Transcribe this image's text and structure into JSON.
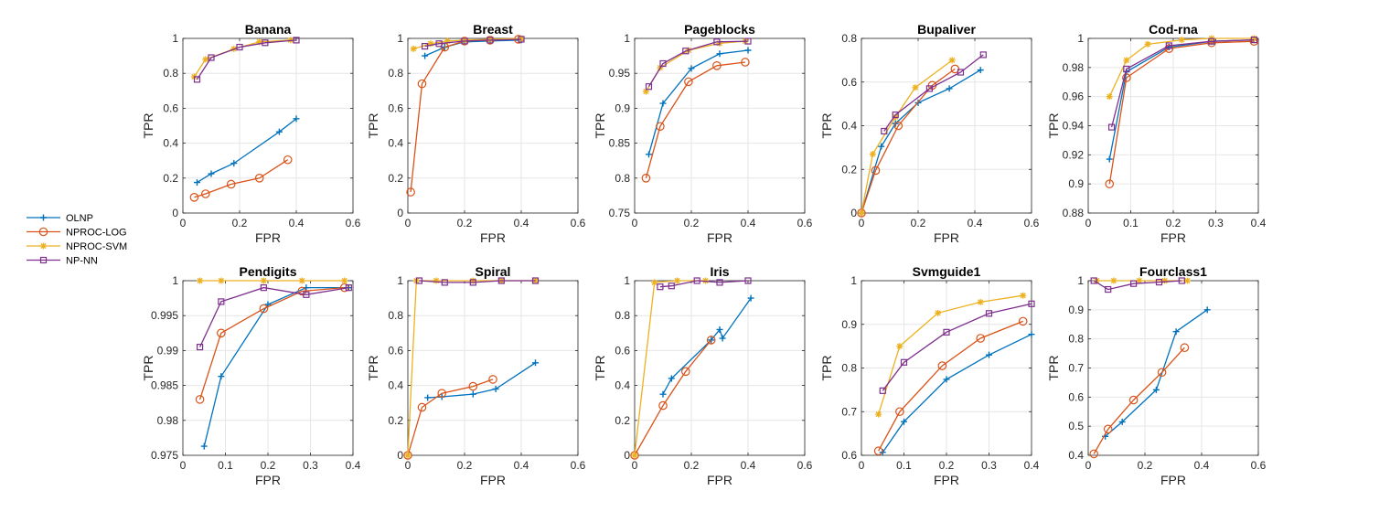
{
  "legend": [
    {
      "name": "OLNP",
      "color": "#0072BD",
      "marker": "plus"
    },
    {
      "name": "NPROC-LOG",
      "color": "#D95319",
      "marker": "circle"
    },
    {
      "name": "NPROC-SVM",
      "color": "#EDB120",
      "marker": "star"
    },
    {
      "name": "NP-NN",
      "color": "#7E2F8E",
      "marker": "square"
    }
  ],
  "chart_data": [
    {
      "type": "line",
      "title": "Banana",
      "xlabel": "FPR",
      "ylabel": "TPR",
      "xlim": [
        0,
        0.6
      ],
      "ylim": [
        0,
        1
      ],
      "xticks": [
        "0",
        "0.2",
        "0.4",
        "0.6"
      ],
      "xtick_values": [
        0,
        0.2,
        0.4,
        0.6
      ],
      "yticks": [
        "0",
        "0.2",
        "0.4",
        "0.6",
        "0.8",
        "1"
      ],
      "ytick_values": [
        0,
        0.2,
        0.4,
        0.6,
        0.8,
        1
      ],
      "grid": true,
      "series": [
        {
          "name": "OLNP",
          "x": [
            0.05,
            0.1,
            0.18,
            0.34,
            0.4
          ],
          "y": [
            0.175,
            0.225,
            0.285,
            0.465,
            0.54
          ]
        },
        {
          "name": "NPROC-LOG",
          "x": [
            0.04,
            0.08,
            0.17,
            0.27,
            0.37
          ],
          "y": [
            0.09,
            0.11,
            0.165,
            0.2,
            0.305
          ]
        },
        {
          "name": "NPROC-SVM",
          "x": [
            0.04,
            0.08,
            0.18,
            0.27,
            0.38
          ],
          "y": [
            0.78,
            0.88,
            0.94,
            0.98,
            0.99
          ]
        },
        {
          "name": "NP-NN",
          "x": [
            0.05,
            0.1,
            0.2,
            0.29,
            0.4
          ],
          "y": [
            0.765,
            0.89,
            0.95,
            0.975,
            0.99
          ]
        }
      ]
    },
    {
      "type": "line",
      "title": "Breast",
      "xlabel": "FPR",
      "ylabel": "TPR",
      "xlim": [
        0,
        0.6
      ],
      "ylim": [
        0,
        1
      ],
      "xticks": [
        "0",
        "0.2",
        "0.4",
        "0.6"
      ],
      "xtick_values": [
        0,
        0.2,
        0.4,
        0.6
      ],
      "yticks": [
        "0",
        "0.2",
        "0.4",
        "0.6",
        "0.8",
        "1"
      ],
      "ytick_values": [
        0,
        0.2,
        0.4,
        0.6,
        0.8,
        1
      ],
      "grid": true,
      "series": [
        {
          "name": "OLNP",
          "x": [
            0.06,
            0.13,
            0.2,
            0.29,
            0.4
          ],
          "y": [
            0.9,
            0.95,
            0.98,
            0.985,
            0.99
          ]
        },
        {
          "name": "NPROC-LOG",
          "x": [
            0.01,
            0.05,
            0.13,
            0.2,
            0.29,
            0.39
          ],
          "y": [
            0.12,
            0.74,
            0.95,
            0.985,
            0.99,
            0.995
          ]
        },
        {
          "name": "NPROC-SVM",
          "x": [
            0.02,
            0.08,
            0.14,
            0.2,
            0.29,
            0.4
          ],
          "y": [
            0.94,
            0.97,
            0.985,
            0.99,
            0.995,
            1
          ]
        },
        {
          "name": "NP-NN",
          "x": [
            0.06,
            0.11,
            0.2,
            0.29,
            0.4
          ],
          "y": [
            0.955,
            0.97,
            0.985,
            0.99,
            0.995
          ]
        }
      ]
    },
    {
      "type": "line",
      "title": "Pageblocks",
      "xlabel": "FPR",
      "ylabel": "TPR",
      "xlim": [
        0,
        0.6
      ],
      "ylim": [
        0.75,
        1
      ],
      "xticks": [
        "0",
        "0.2",
        "0.4",
        "0.6"
      ],
      "xtick_values": [
        0,
        0.2,
        0.4,
        0.6
      ],
      "yticks": [
        "0.75",
        "0.8",
        "0.85",
        "0.9",
        "0.95",
        "1"
      ],
      "ytick_values": [
        0.75,
        0.8,
        0.85,
        0.9,
        0.95,
        1
      ],
      "grid": true,
      "series": [
        {
          "name": "OLNP",
          "x": [
            0.05,
            0.1,
            0.2,
            0.3,
            0.4
          ],
          "y": [
            0.834,
            0.907,
            0.957,
            0.978,
            0.983
          ]
        },
        {
          "name": "NPROC-LOG",
          "x": [
            0.04,
            0.09,
            0.19,
            0.29,
            0.39
          ],
          "y": [
            0.8,
            0.874,
            0.938,
            0.961,
            0.966
          ]
        },
        {
          "name": "NPROC-SVM",
          "x": [
            0.04,
            0.09,
            0.19,
            0.3,
            0.39
          ],
          "y": [
            0.924,
            0.958,
            0.983,
            0.993,
            0.996
          ]
        },
        {
          "name": "NP-NN",
          "x": [
            0.05,
            0.1,
            0.18,
            0.29,
            0.4
          ],
          "y": [
            0.931,
            0.964,
            0.982,
            0.995,
            0.996
          ]
        }
      ]
    },
    {
      "type": "line",
      "title": "Bupaliver",
      "xlabel": "FPR",
      "ylabel": "TPR",
      "xlim": [
        0,
        0.6
      ],
      "ylim": [
        0,
        0.8
      ],
      "xticks": [
        "0",
        "0.2",
        "0.4",
        "0.6"
      ],
      "xtick_values": [
        0,
        0.2,
        0.4,
        0.6
      ],
      "yticks": [
        "0",
        "0.2",
        "0.4",
        "0.6",
        "0.8"
      ],
      "ytick_values": [
        0,
        0.2,
        0.4,
        0.6,
        0.8
      ],
      "grid": true,
      "series": [
        {
          "name": "OLNP",
          "x": [
            0,
            0.07,
            0.12,
            0.2,
            0.31,
            0.42
          ],
          "y": [
            0,
            0.305,
            0.41,
            0.505,
            0.57,
            0.655
          ]
        },
        {
          "name": "NPROC-LOG",
          "x": [
            0,
            0.05,
            0.13,
            0.25,
            0.33
          ],
          "y": [
            0,
            0.195,
            0.4,
            0.585,
            0.66
          ]
        },
        {
          "name": "NPROC-SVM",
          "x": [
            0,
            0.04,
            0.12,
            0.19,
            0.32
          ],
          "y": [
            0,
            0.27,
            0.44,
            0.575,
            0.7
          ]
        },
        {
          "name": "NP-NN",
          "x": [
            0.08,
            0.12,
            0.24,
            0.35,
            0.43
          ],
          "y": [
            0.375,
            0.45,
            0.57,
            0.645,
            0.725
          ]
        }
      ]
    },
    {
      "type": "line",
      "title": "Cod-rna",
      "xlabel": "FPR",
      "ylabel": "TPR",
      "xlim": [
        0,
        0.4
      ],
      "ylim": [
        0.88,
        1
      ],
      "xticks": [
        "0",
        "0.1",
        "0.2",
        "0.3",
        "0.4"
      ],
      "xtick_values": [
        0,
        0.1,
        0.2,
        0.3,
        0.4
      ],
      "yticks": [
        "0.88",
        "0.9",
        "0.92",
        "0.94",
        "0.96",
        "0.98",
        "1"
      ],
      "ytick_values": [
        0.88,
        0.9,
        0.92,
        0.94,
        0.96,
        0.98,
        1
      ],
      "grid": true,
      "series": [
        {
          "name": "OLNP",
          "x": [
            0.05,
            0.09,
            0.19,
            0.29,
            0.39
          ],
          "y": [
            0.917,
            0.977,
            0.994,
            0.998,
            0.999
          ]
        },
        {
          "name": "NPROC-LOG",
          "x": [
            0.05,
            0.09,
            0.19,
            0.29,
            0.39
          ],
          "y": [
            0.9,
            0.973,
            0.993,
            0.997,
            0.998
          ]
        },
        {
          "name": "NPROC-SVM",
          "x": [
            0.05,
            0.09,
            0.14,
            0.22,
            0.29,
            0.39
          ],
          "y": [
            0.96,
            0.985,
            0.996,
            0.999,
            1,
            1
          ]
        },
        {
          "name": "NP-NN",
          "x": [
            0.055,
            0.09,
            0.19,
            0.29,
            0.39
          ],
          "y": [
            0.939,
            0.979,
            0.995,
            0.998,
            0.999
          ]
        }
      ]
    },
    {
      "type": "line",
      "title": "Pendigits",
      "xlabel": "FPR",
      "ylabel": "TPR",
      "xlim": [
        0,
        0.4
      ],
      "ylim": [
        0.975,
        1
      ],
      "xticks": [
        "0",
        "0.1",
        "0.2",
        "0.3",
        "0.4"
      ],
      "xtick_values": [
        0,
        0.1,
        0.2,
        0.3,
        0.4
      ],
      "yticks": [
        "0.975",
        "0.98",
        "0.985",
        "0.99",
        "0.995",
        "1"
      ],
      "ytick_values": [
        0.975,
        0.98,
        0.985,
        0.99,
        0.995,
        1
      ],
      "grid": true,
      "series": [
        {
          "name": "OLNP",
          "x": [
            0.05,
            0.09,
            0.2,
            0.29,
            0.39
          ],
          "y": [
            0.9763,
            0.9863,
            0.9966,
            0.999,
            0.999
          ]
        },
        {
          "name": "NPROC-LOG",
          "x": [
            0.04,
            0.09,
            0.19,
            0.28,
            0.38
          ],
          "y": [
            0.983,
            0.9925,
            0.996,
            0.9985,
            0.999
          ]
        },
        {
          "name": "NPROC-SVM",
          "x": [
            0.04,
            0.09,
            0.19,
            0.28,
            0.38
          ],
          "y": [
            1,
            1,
            1,
            1,
            1
          ]
        },
        {
          "name": "NP-NN",
          "x": [
            0.04,
            0.09,
            0.19,
            0.29,
            0.39
          ],
          "y": [
            0.9905,
            0.997,
            0.999,
            0.998,
            0.999
          ]
        }
      ]
    },
    {
      "type": "line",
      "title": "Spiral",
      "xlabel": "FPR",
      "ylabel": "TPR",
      "xlim": [
        0,
        0.6
      ],
      "ylim": [
        0,
        1
      ],
      "xticks": [
        "0",
        "0.2",
        "0.4",
        "0.6"
      ],
      "xtick_values": [
        0,
        0.2,
        0.4,
        0.6
      ],
      "yticks": [
        "0",
        "0.2",
        "0.4",
        "0.6",
        "0.8",
        "1"
      ],
      "ytick_values": [
        0,
        0.2,
        0.4,
        0.6,
        0.8,
        1
      ],
      "grid": true,
      "series": [
        {
          "name": "OLNP",
          "x": [
            0.07,
            0.12,
            0.23,
            0.31,
            0.45
          ],
          "y": [
            0.33,
            0.335,
            0.35,
            0.38,
            0.53
          ]
        },
        {
          "name": "NPROC-LOG",
          "x": [
            0,
            0.05,
            0.12,
            0.23,
            0.3
          ],
          "y": [
            0,
            0.275,
            0.355,
            0.395,
            0.435
          ]
        },
        {
          "name": "NPROC-SVM",
          "x": [
            0,
            0.03,
            0.1,
            0.23,
            0.33,
            0.45
          ],
          "y": [
            0,
            1,
            1,
            1,
            1,
            1
          ]
        },
        {
          "name": "NP-NN",
          "x": [
            0.04,
            0.13,
            0.23,
            0.33,
            0.45
          ],
          "y": [
            1,
            0.99,
            0.99,
            1,
            1
          ]
        }
      ]
    },
    {
      "type": "line",
      "title": "Iris",
      "xlabel": "FPR",
      "ylabel": "TPR",
      "xlim": [
        0,
        0.6
      ],
      "ylim": [
        0,
        1
      ],
      "xticks": [
        "0",
        "0.2",
        "0.4",
        "0.6"
      ],
      "xtick_values": [
        0,
        0.2,
        0.4,
        0.6
      ],
      "yticks": [
        "0",
        "0.2",
        "0.4",
        "0.6",
        "0.8",
        "1"
      ],
      "ytick_values": [
        0,
        0.2,
        0.4,
        0.6,
        0.8,
        1
      ],
      "grid": true,
      "series": [
        {
          "name": "OLNP",
          "x": [
            0.1,
            0.13,
            0.27,
            0.3,
            0.31,
            0.41
          ],
          "y": [
            0.35,
            0.44,
            0.66,
            0.72,
            0.67,
            0.9
          ]
        },
        {
          "name": "NPROC-LOG",
          "x": [
            0,
            0.1,
            0.18,
            0.27
          ],
          "y": [
            0,
            0.285,
            0.48,
            0.66
          ]
        },
        {
          "name": "NPROC-SVM",
          "x": [
            0,
            0.07,
            0.15,
            0.25
          ],
          "y": [
            0,
            0.99,
            1,
            1
          ]
        },
        {
          "name": "NP-NN",
          "x": [
            0.09,
            0.13,
            0.22,
            0.3,
            0.4
          ],
          "y": [
            0.965,
            0.97,
            1,
            0.99,
            1
          ]
        }
      ]
    },
    {
      "type": "line",
      "title": "Svmguide1",
      "xlabel": "FPR",
      "ylabel": "TPR",
      "xlim": [
        0,
        0.4
      ],
      "ylim": [
        0.6,
        1
      ],
      "xticks": [
        "0",
        "0.1",
        "0.2",
        "0.3",
        "0.4"
      ],
      "xtick_values": [
        0,
        0.1,
        0.2,
        0.3,
        0.4
      ],
      "yticks": [
        "0.6",
        "0.7",
        "0.8",
        "0.9",
        "1"
      ],
      "ytick_values": [
        0.6,
        0.7,
        0.8,
        0.9,
        1
      ],
      "grid": true,
      "series": [
        {
          "name": "OLNP",
          "x": [
            0.05,
            0.1,
            0.2,
            0.3,
            0.4
          ],
          "y": [
            0.607,
            0.677,
            0.774,
            0.83,
            0.877
          ]
        },
        {
          "name": "NPROC-LOG",
          "x": [
            0.04,
            0.09,
            0.19,
            0.28,
            0.38
          ],
          "y": [
            0.61,
            0.7,
            0.805,
            0.868,
            0.907
          ]
        },
        {
          "name": "NPROC-SVM",
          "x": [
            0.04,
            0.09,
            0.18,
            0.28,
            0.38
          ],
          "y": [
            0.694,
            0.85,
            0.926,
            0.951,
            0.966
          ]
        },
        {
          "name": "NP-NN",
          "x": [
            0.05,
            0.1,
            0.2,
            0.3,
            0.4
          ],
          "y": [
            0.748,
            0.813,
            0.882,
            0.925,
            0.947
          ]
        }
      ]
    },
    {
      "type": "line",
      "title": "Fourclass1",
      "xlabel": "FPR",
      "ylabel": "TPR",
      "xlim": [
        0,
        0.6
      ],
      "ylim": [
        0.4,
        1
      ],
      "xticks": [
        "0",
        "0.2",
        "0.4",
        "0.6"
      ],
      "xtick_values": [
        0,
        0.2,
        0.4,
        0.6
      ],
      "yticks": [
        "0.4",
        "0.5",
        "0.6",
        "0.7",
        "0.8",
        "0.9",
        "1"
      ],
      "ytick_values": [
        0.4,
        0.5,
        0.6,
        0.7,
        0.8,
        0.9,
        1
      ],
      "grid": true,
      "series": [
        {
          "name": "OLNP",
          "x": [
            0.06,
            0.12,
            0.24,
            0.31,
            0.42
          ],
          "y": [
            0.465,
            0.515,
            0.625,
            0.825,
            0.9
          ]
        },
        {
          "name": "NPROC-LOG",
          "x": [
            0.02,
            0.07,
            0.16,
            0.26,
            0.34
          ],
          "y": [
            0.405,
            0.49,
            0.59,
            0.685,
            0.77
          ]
        },
        {
          "name": "NPROC-SVM",
          "x": [
            0.03,
            0.09,
            0.18,
            0.27,
            0.35
          ],
          "y": [
            1,
            1,
            1,
            1,
            1
          ]
        },
        {
          "name": "NP-NN",
          "x": [
            0.02,
            0.07,
            0.16,
            0.25,
            0.33
          ],
          "y": [
            1,
            0.97,
            0.99,
            0.995,
            1
          ]
        }
      ]
    }
  ]
}
